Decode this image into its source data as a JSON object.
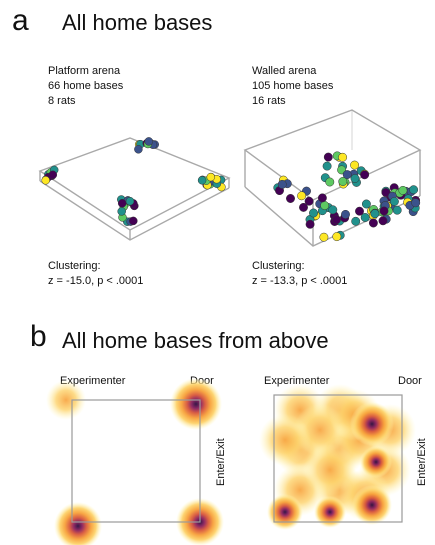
{
  "panel_a": {
    "letter": "a",
    "title": "All home bases",
    "platform": {
      "label": "Platform arena",
      "count": "66 home bases",
      "rats": "8 rats",
      "clustering_label": "Clustering:",
      "stats": "z = -15.0, p < .0001"
    },
    "walled": {
      "label": "Walled arena",
      "count": "105 home bases",
      "rats": "16 rats",
      "clustering_label": "Clustering:",
      "stats": "z = -13.3, p < .0001"
    }
  },
  "panel_b": {
    "letter": "b",
    "title": "All home bases from above",
    "left": {
      "experimenter": "Experimenter",
      "door": "Door",
      "enter_exit": "Enter/Exit"
    },
    "right": {
      "experimenter": "Experimenter",
      "door": "Door",
      "enter_exit": "Enter/Exit"
    }
  },
  "colors": {
    "viridis": [
      "#440154",
      "#3b528b",
      "#21918c",
      "#5ec962",
      "#fde725"
    ],
    "heat": [
      "#fff7b0",
      "#fdd26a",
      "#f7a13a",
      "#d8573a",
      "#8a1f5c",
      "#2b0a3d"
    ]
  }
}
